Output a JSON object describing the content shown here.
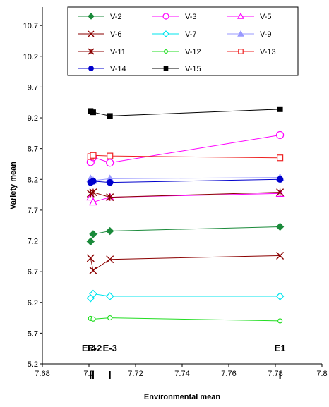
{
  "chart_data": {
    "type": "line",
    "title": "",
    "xlabel": "Environmental mean",
    "ylabel": "Variety mean",
    "xlim": [
      7.68,
      7.8
    ],
    "ylim": [
      5.2,
      11.0
    ],
    "xticks": [
      "7.68",
      "7.7",
      "7.72",
      "7.74",
      "7.76",
      "7.78",
      "7.8"
    ],
    "yticks": [
      "5.2",
      "5.7",
      "6.2",
      "6.7",
      "7.2",
      "7.7",
      "8.2",
      "8.7",
      "9.2",
      "9.7",
      "10.2",
      "10.7"
    ],
    "environment_labels": [
      {
        "label": "E-4",
        "x": 7.7
      },
      {
        "label": "E-2",
        "x": 7.7025
      },
      {
        "label": "E-3",
        "x": 7.709
      },
      {
        "label": "E1",
        "x": 7.782
      }
    ],
    "x": [
      7.7007,
      7.7018,
      7.709,
      7.782
    ],
    "series": [
      {
        "name": "V-2",
        "color": "#1a8a3a",
        "marker": "diamond-filled",
        "values": [
          7.19,
          7.31,
          7.36,
          7.43
        ]
      },
      {
        "name": "V-3",
        "color": "#ff00ff",
        "marker": "circle-open",
        "values": [
          8.48,
          8.56,
          8.47,
          8.92
        ]
      },
      {
        "name": "V-5",
        "color": "#ff00ff",
        "marker": "triangle-open",
        "values": [
          7.91,
          7.83,
          7.91,
          7.97
        ]
      },
      {
        "name": "V-6",
        "color": "#8b0000",
        "marker": "x",
        "values": [
          6.92,
          6.72,
          6.9,
          6.96
        ]
      },
      {
        "name": "V-7",
        "color": "#00e5ee",
        "marker": "diamond-open",
        "values": [
          6.27,
          6.34,
          6.3,
          6.3
        ]
      },
      {
        "name": "V-9",
        "color": "#9999ff",
        "marker": "triangle-filled",
        "values": [
          8.21,
          8.18,
          8.21,
          8.23
        ]
      },
      {
        "name": "V-11",
        "color": "#8b0000",
        "marker": "star",
        "values": [
          7.97,
          7.99,
          7.91,
          7.99
        ]
      },
      {
        "name": "V-12",
        "color": "#22dd22",
        "marker": "circle-small",
        "values": [
          5.94,
          5.93,
          5.95,
          5.9
        ]
      },
      {
        "name": "V-13",
        "color": "#ee2222",
        "marker": "square-open",
        "values": [
          8.57,
          8.59,
          8.58,
          8.55
        ]
      },
      {
        "name": "V-14",
        "color": "#0000cc",
        "marker": "circle-filled",
        "values": [
          8.15,
          8.17,
          8.15,
          8.2
        ]
      },
      {
        "name": "V-15",
        "color": "#000000",
        "marker": "square-filled",
        "values": [
          9.31,
          9.29,
          9.23,
          9.34
        ]
      }
    ],
    "legend": {
      "placement": "top",
      "columns": 3
    },
    "grid": false
  }
}
